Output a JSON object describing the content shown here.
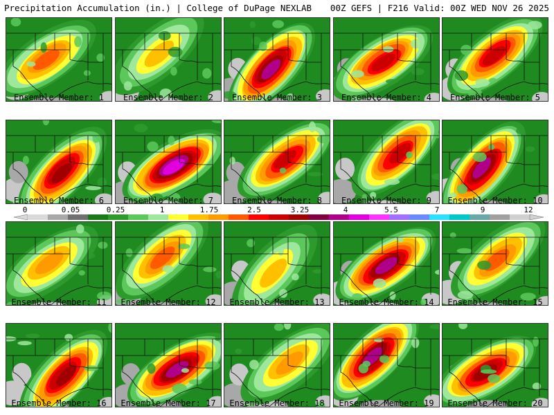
{
  "header": {
    "left": "Precipitation Accumulation (in.) | College of DuPage NEXLAB",
    "right": "00Z GEFS | F216 Valid: 00Z WED NOV 26 2025"
  },
  "colorbar": {
    "tick_labels": [
      "0",
      "0.05",
      "0.25",
      "1",
      "1.75",
      "2.5",
      "3.25",
      "4",
      "5.5",
      "7",
      "9",
      "12"
    ],
    "colors": [
      "#d9d9d9",
      "#a8a8a8",
      "#707070",
      "#1a7a1a",
      "#2e9a2e",
      "#5cc85c",
      "#9ee89e",
      "#ffff33",
      "#ffc000",
      "#ff9a00",
      "#ff5a00",
      "#ff0000",
      "#cc0000",
      "#a00000",
      "#800040",
      "#b0008a",
      "#e000e0",
      "#ff33ff",
      "#a070ff",
      "#6a8aff",
      "#2ee0ff",
      "#00c8c8",
      "#6aa8a8",
      "#a0a0a0",
      "#d0d0d0"
    ]
  },
  "panels": [
    {
      "label": "Ensemble Member: 1",
      "intensity": 2.0
    },
    {
      "label": "Ensemble Member: 2",
      "intensity": 1.4
    },
    {
      "label": "Ensemble Member: 3",
      "intensity": 3.2
    },
    {
      "label": "Ensemble Member: 4",
      "intensity": 2.6
    },
    {
      "label": "Ensemble Member: 5",
      "intensity": 2.6
    },
    {
      "label": "Ensemble Member: 6",
      "intensity": 2.9
    },
    {
      "label": "Ensemble Member: 7",
      "intensity": 3.4
    },
    {
      "label": "Ensemble Member: 8",
      "intensity": 2.5
    },
    {
      "label": "Ensemble Member: 9",
      "intensity": 2.6
    },
    {
      "label": "Ensemble Member: 10",
      "intensity": 3.2
    },
    {
      "label": "Ensemble Member: 11",
      "intensity": 1.9
    },
    {
      "label": "Ensemble Member: 12",
      "intensity": 2.0
    },
    {
      "label": "Ensemble Member: 13",
      "intensity": 1.6
    },
    {
      "label": "Ensemble Member: 14",
      "intensity": 3.2
    },
    {
      "label": "Ensemble Member: 15",
      "intensity": 2.2
    },
    {
      "label": "Ensemble Member: 16",
      "intensity": 2.8
    },
    {
      "label": "Ensemble Member: 17",
      "intensity": 3.1
    },
    {
      "label": "Ensemble Member: 18",
      "intensity": 1.8
    },
    {
      "label": "Ensemble Member: 19",
      "intensity": 3.2
    },
    {
      "label": "Ensemble Member: 20",
      "intensity": 2.9
    }
  ]
}
